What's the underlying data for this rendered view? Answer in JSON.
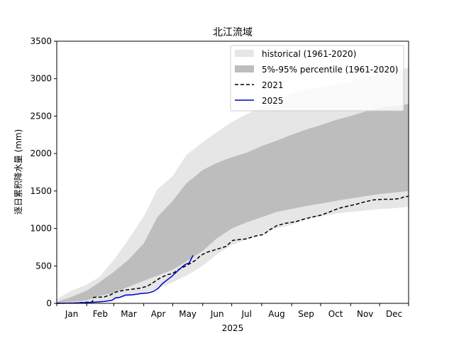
{
  "chart_data": {
    "type": "area",
    "title": "北江流域",
    "xlabel": "2025",
    "ylabel": "逐日累积降水量 (mm)",
    "ylim": [
      0,
      3500
    ],
    "yticks": [
      0,
      500,
      1000,
      1500,
      2000,
      2500,
      3000,
      3500
    ],
    "xlim": [
      1,
      365
    ],
    "month_labels": [
      "Jan",
      "Feb",
      "Mar",
      "Apr",
      "May",
      "Jun",
      "Jul",
      "Aug",
      "Sep",
      "Oct",
      "Nov",
      "Dec"
    ],
    "month_boundaries": [
      1,
      32,
      60,
      91,
      121,
      152,
      182,
      213,
      244,
      274,
      305,
      335,
      365
    ],
    "legend_position": "top-right",
    "legend_entries": [
      "historical (1961-2020)",
      "5%-95% percentile (1961-2020)",
      "2021",
      "2025"
    ],
    "series": [
      {
        "name": "historical (1961-2020)",
        "kind": "band",
        "color": "#e6e6e6",
        "x": [
          1,
          15,
          32,
          45,
          60,
          75,
          91,
          105,
          121,
          135,
          152,
          166,
          182,
          197,
          213,
          228,
          244,
          259,
          274,
          290,
          305,
          320,
          335,
          350,
          365
        ],
        "lower": [
          0,
          3,
          5,
          25,
          50,
          90,
          140,
          200,
          280,
          370,
          500,
          650,
          780,
          850,
          930,
          1000,
          1050,
          1120,
          1160,
          1200,
          1220,
          1240,
          1260,
          1270,
          1290
        ],
        "upper": [
          60,
          160,
          250,
          350,
          580,
          850,
          1160,
          1520,
          1700,
          1980,
          2150,
          2280,
          2420,
          2520,
          2620,
          2700,
          2800,
          2850,
          2880,
          2920,
          2960,
          3020,
          3060,
          3100,
          3150
        ]
      },
      {
        "name": "5%-95% percentile (1961-2020)",
        "kind": "band",
        "color": "#bdbdbd",
        "x": [
          1,
          15,
          32,
          45,
          60,
          75,
          91,
          105,
          121,
          135,
          152,
          166,
          182,
          197,
          213,
          228,
          244,
          259,
          274,
          290,
          305,
          320,
          335,
          350,
          365
        ],
        "lower": [
          5,
          20,
          40,
          100,
          140,
          220,
          300,
          370,
          450,
          560,
          700,
          860,
          1000,
          1080,
          1150,
          1220,
          1260,
          1300,
          1330,
          1370,
          1400,
          1430,
          1460,
          1480,
          1500
        ],
        "upper": [
          20,
          80,
          170,
          280,
          420,
          580,
          800,
          1150,
          1370,
          1600,
          1780,
          1870,
          1950,
          2010,
          2100,
          2170,
          2250,
          2320,
          2380,
          2450,
          2500,
          2560,
          2610,
          2640,
          2660
        ]
      },
      {
        "name": "2021",
        "kind": "line",
        "color": "#000000",
        "dashed": true,
        "x": [
          1,
          20,
          38,
          39,
          50,
          56,
          62,
          70,
          80,
          88,
          95,
          101,
          108,
          115,
          121,
          127,
          133,
          140,
          145,
          150,
          156,
          166,
          176,
          183,
          189,
          197,
          207,
          215,
          221,
          229,
          238,
          248,
          258,
          268,
          275,
          283,
          293,
          303,
          310,
          318,
          328,
          338,
          348,
          356,
          360,
          365
        ],
        "y": [
          0,
          5,
          20,
          80,
          85,
          110,
          150,
          175,
          190,
          205,
          230,
          280,
          340,
          380,
          400,
          450,
          490,
          540,
          580,
          640,
          680,
          720,
          760,
          840,
          850,
          860,
          900,
          920,
          980,
          1040,
          1070,
          1090,
          1130,
          1160,
          1180,
          1220,
          1270,
          1300,
          1320,
          1350,
          1380,
          1390,
          1390,
          1400,
          1420,
          1430
        ]
      },
      {
        "name": "2025",
        "kind": "line",
        "color": "#0000cc",
        "dashed": false,
        "x": [
          1,
          20,
          30,
          40,
          50,
          58,
          62,
          66,
          72,
          80,
          88,
          96,
          101,
          106,
          110,
          115,
          120,
          125,
          130,
          134,
          138,
          142
        ],
        "y": [
          0,
          5,
          10,
          15,
          25,
          40,
          75,
          80,
          110,
          115,
          130,
          140,
          160,
          200,
          260,
          310,
          360,
          420,
          480,
          520,
          540,
          640
        ]
      }
    ]
  }
}
